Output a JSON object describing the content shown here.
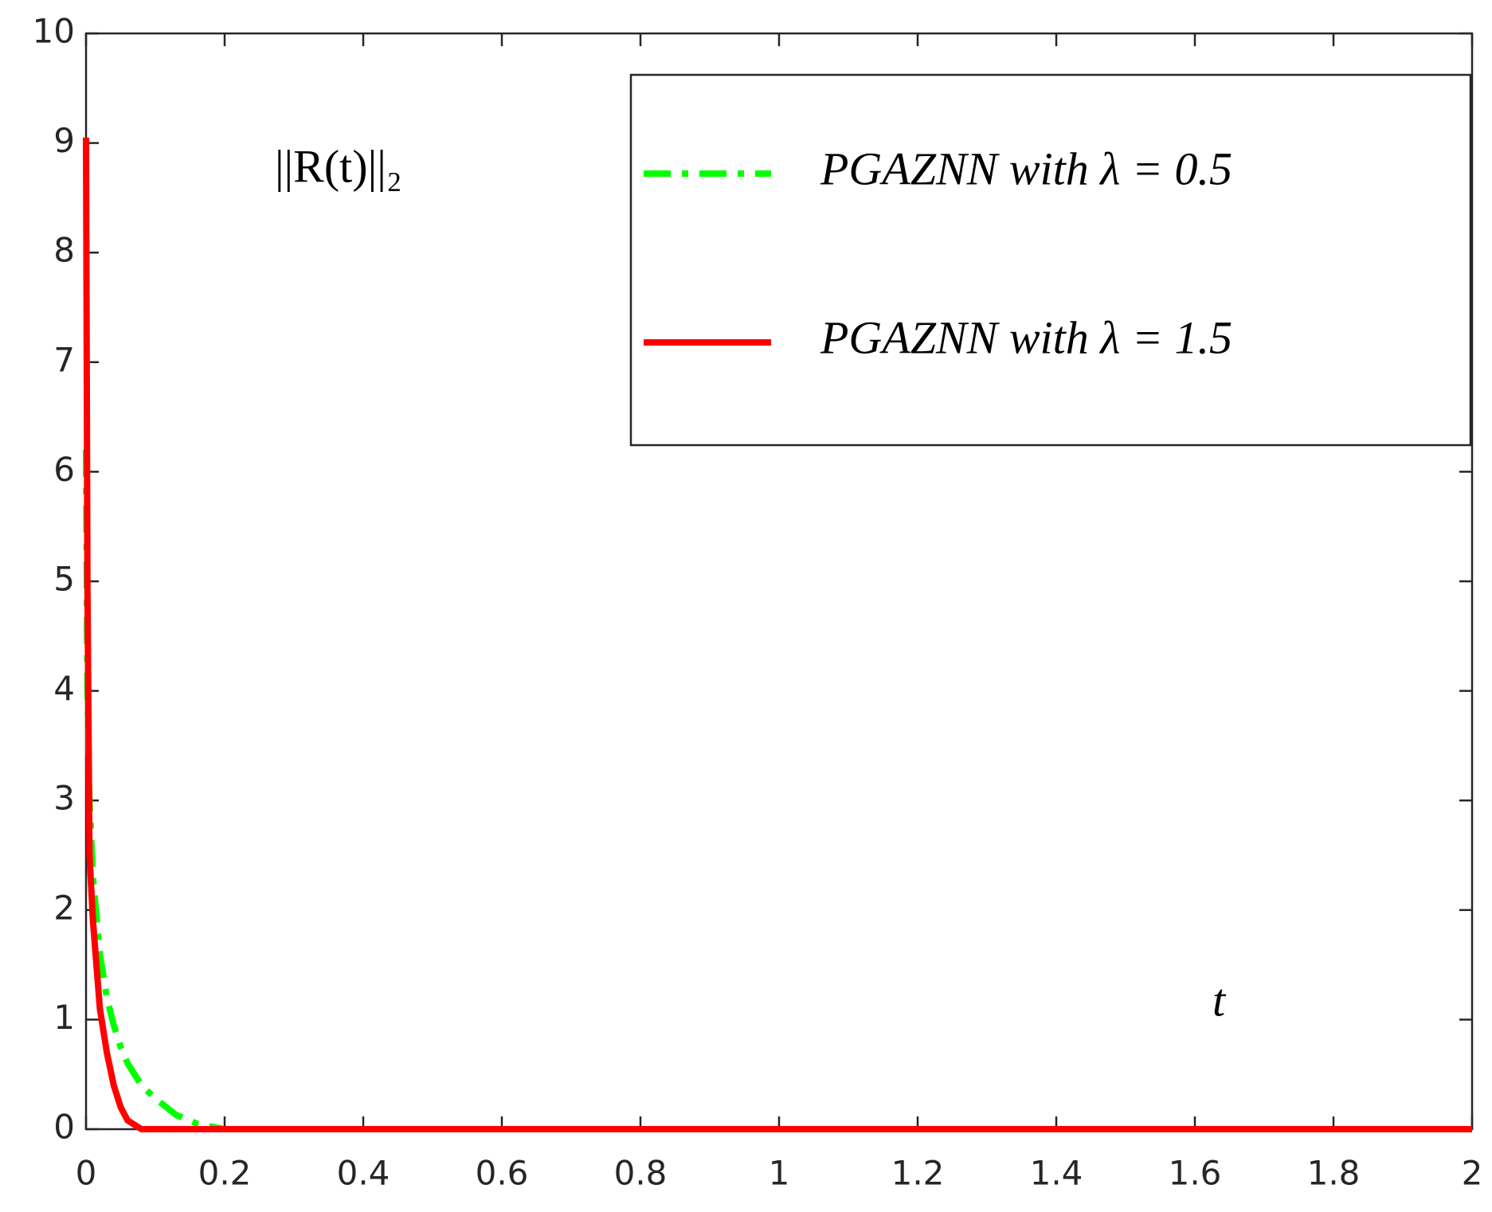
{
  "chart_data": {
    "type": "line",
    "annotations": [
      "||R(t)||₂",
      "t"
    ],
    "x": [
      0,
      0.002,
      0.005,
      0.01,
      0.02,
      0.03,
      0.04,
      0.05,
      0.06,
      0.08,
      0.1,
      0.13,
      0.16,
      0.2,
      0.5,
      1,
      1.5,
      2
    ],
    "series": [
      {
        "name": "PGAZNN with λ = 0.5",
        "color": "#00ff00",
        "dash": "dashdot",
        "values": [
          6.2,
          4,
          3,
          2.3,
          1.6,
          1.2,
          0.95,
          0.75,
          0.6,
          0.4,
          0.28,
          0.13,
          0.05,
          0,
          0,
          0,
          0,
          0
        ]
      },
      {
        "name": "PGAZNN with λ = 1.5",
        "color": "#ff0000",
        "dash": "solid",
        "values": [
          9.05,
          5,
          2.5,
          1.9,
          1.1,
          0.7,
          0.4,
          0.2,
          0.08,
          0,
          0,
          0,
          0,
          0,
          0,
          0,
          0,
          0
        ]
      }
    ],
    "xlim": [
      0,
      2
    ],
    "xticks": [
      0,
      0.2,
      0.4,
      0.6,
      0.8,
      1,
      1.2,
      1.4,
      1.6,
      1.8,
      2
    ],
    "ylim": [
      0,
      10
    ],
    "yticks": [
      0,
      1,
      2,
      3,
      4,
      5,
      6,
      7,
      8,
      9,
      10
    ],
    "legend": "upper right"
  }
}
